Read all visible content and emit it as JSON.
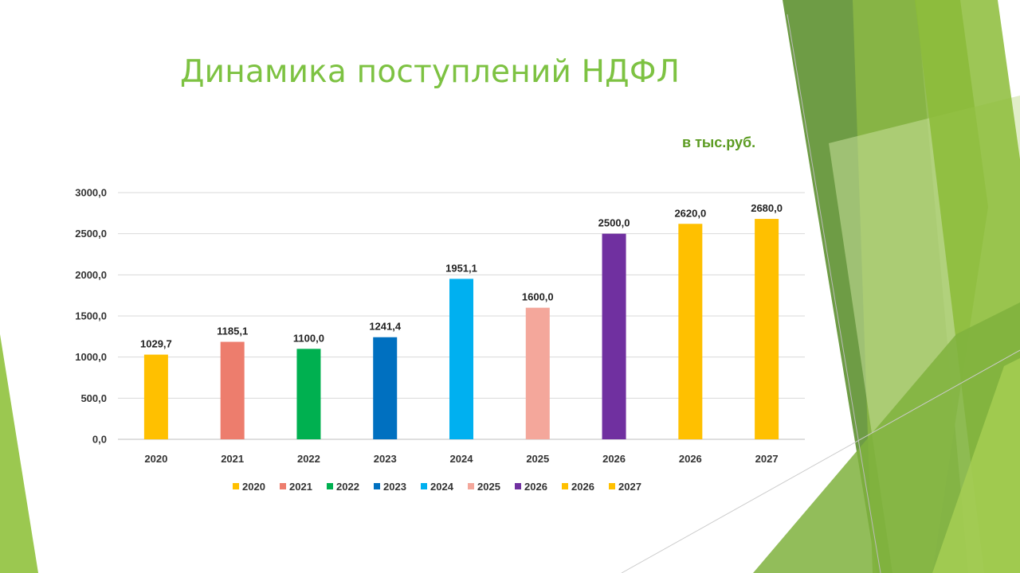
{
  "slide": {
    "title": "Динамика поступлений НДФЛ",
    "units": "в тыс.руб.",
    "title_color": "#7dc242"
  },
  "chart_data": {
    "type": "bar",
    "categories": [
      "2020",
      "2021",
      "2022",
      "2023",
      "2024",
      "2025",
      "2026",
      "2026",
      "2027"
    ],
    "values": [
      1029.7,
      1185.1,
      1100.0,
      1241.4,
      1951.1,
      1600.0,
      2500.0,
      2620.0,
      2680.0
    ],
    "value_labels": [
      "1029,7",
      "1185,1",
      "1100,0",
      "1241,4",
      "1951,1",
      "1600,0",
      "2500,0",
      "2620,0",
      "2680,0"
    ],
    "colors": [
      "#ffc000",
      "#ed7d6d",
      "#00b050",
      "#0070c0",
      "#00b0f0",
      "#f4a79b",
      "#7030a0",
      "#ffc000",
      "#ffc000"
    ],
    "legend": [
      "2020",
      "2021",
      "2022",
      "2023",
      "2024",
      "2025",
      "2026",
      "2026",
      "2027"
    ],
    "legend_position": "bottom",
    "ylim": [
      0,
      3000
    ],
    "yticks": [
      0,
      500,
      1000,
      1500,
      2000,
      2500,
      3000
    ],
    "ytick_labels": [
      "0,0",
      "500,0",
      "1000,0",
      "1500,0",
      "2000,0",
      "2500,0",
      "3000,0"
    ],
    "grid": true,
    "title": "",
    "xlabel": "",
    "ylabel": ""
  }
}
